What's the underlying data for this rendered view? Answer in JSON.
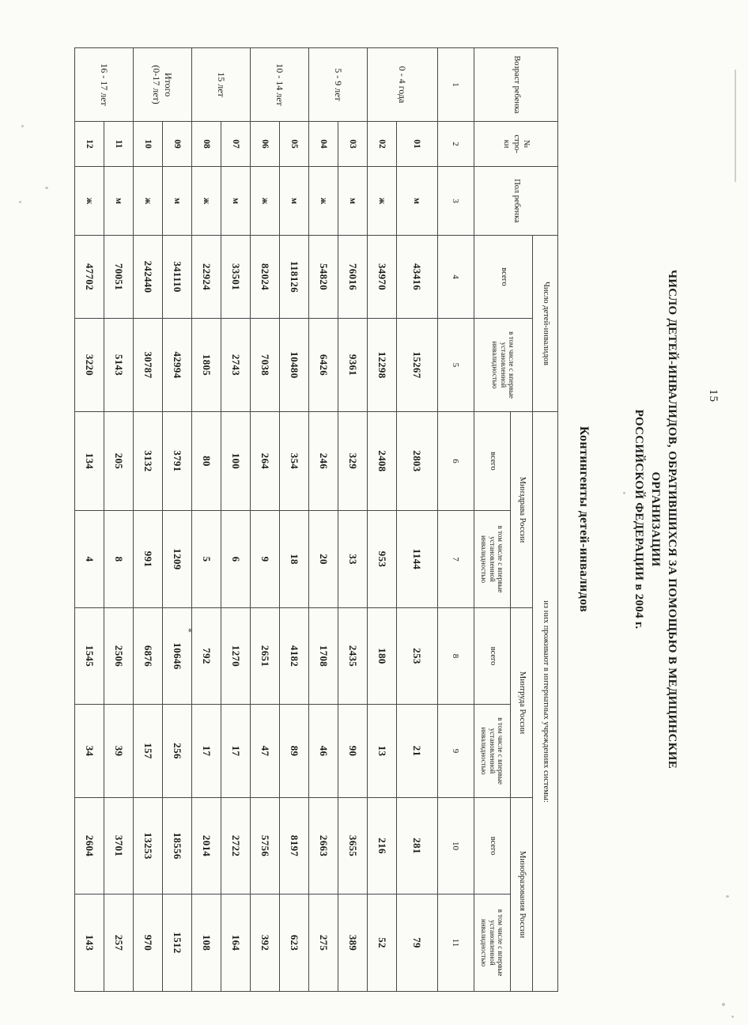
{
  "page_number": "15",
  "title": {
    "line1": "ЧИСЛО ДЕТЕЙ-ИНВАЛИДОВ, ОБРАТИВШИХСЯ ЗА ПОМОЩЬЮ В МЕДИЦИНСКИЕ",
    "line2": "ОРГАНИЗАЦИИ",
    "line3": "РОССИЙСКОЙ ФЕДЕРАЦИИ в 2004 г.",
    "subtitle": "Контингенты детей-инвалидов"
  },
  "table": {
    "headers": {
      "age": "Возраст ребенка",
      "line_no": "№\nстро-\nки",
      "sex": "Пол ребенка",
      "group_children": "Число детей-инвалидов",
      "group_boarding": "из них проживают в интернатных учреждениях системы:",
      "ministries": [
        "Минздрава России",
        "Минтруда России",
        "Минобразования России"
      ],
      "total": "всего",
      "first_time": "в том числе с впервые установленной инвалидностью"
    },
    "col_numbers": [
      "1",
      "2",
      "3",
      "4",
      "5",
      "6",
      "7",
      "8",
      "9",
      "10",
      "11"
    ],
    "rows": [
      {
        "age": "0 - 4 года",
        "num": "01",
        "sex": "м",
        "values": [
          "43416",
          "15267",
          "2803",
          "1144",
          "253",
          "21",
          "281",
          "79"
        ]
      },
      {
        "num": "02",
        "sex": "ж",
        "values": [
          "34970",
          "12298",
          "2408",
          "953",
          "180",
          "13",
          "216",
          "52"
        ]
      },
      {
        "age": "5 - 9 лет",
        "num": "03",
        "sex": "м",
        "values": [
          "76016",
          "9361",
          "329",
          "33",
          "2435",
          "90",
          "3655",
          "389"
        ]
      },
      {
        "num": "04",
        "sex": "ж",
        "values": [
          "54820",
          "6426",
          "246",
          "20",
          "1708",
          "46",
          "2663",
          "275"
        ]
      },
      {
        "age": "10 - 14 лет",
        "num": "05",
        "sex": "м",
        "values": [
          "118126",
          "10480",
          "354",
          "18",
          "4182",
          "89",
          "8197",
          "623"
        ]
      },
      {
        "num": "06",
        "sex": "ж",
        "values": [
          "82024",
          "7038",
          "264",
          "9",
          "2651",
          "47",
          "5756",
          "392"
        ]
      },
      {
        "age": "15 лет",
        "num": "07",
        "sex": "м",
        "values": [
          "33501",
          "2743",
          "100",
          "6",
          "1270",
          "17",
          "2722",
          "164"
        ]
      },
      {
        "num": "08",
        "sex": "ж",
        "values": [
          "22924",
          "1805",
          "80",
          "5",
          "792",
          "17",
          "2014",
          "108"
        ]
      },
      {
        "age": "Итого\n(0-17 лет)",
        "num": "09",
        "sex": "м",
        "values": [
          "341110",
          "42994",
          "3791",
          "1209",
          "10646",
          "256",
          "18556",
          "1512"
        ]
      },
      {
        "num": "10",
        "sex": "ж",
        "values": [
          "242440",
          "30787",
          "3132",
          "991",
          "6876",
          "157",
          "13253",
          "970"
        ]
      },
      {
        "age": "16 - 17 лет",
        "num": "11",
        "sex": "м",
        "values": [
          "70051",
          "5143",
          "205",
          "8",
          "2506",
          "39",
          "3701",
          "257"
        ]
      },
      {
        "num": "12",
        "sex": "ж",
        "values": [
          "47702",
          "3220",
          "134",
          "4",
          "1545",
          "34",
          "2604",
          "143"
        ]
      }
    ]
  },
  "stray_mark": "*"
}
